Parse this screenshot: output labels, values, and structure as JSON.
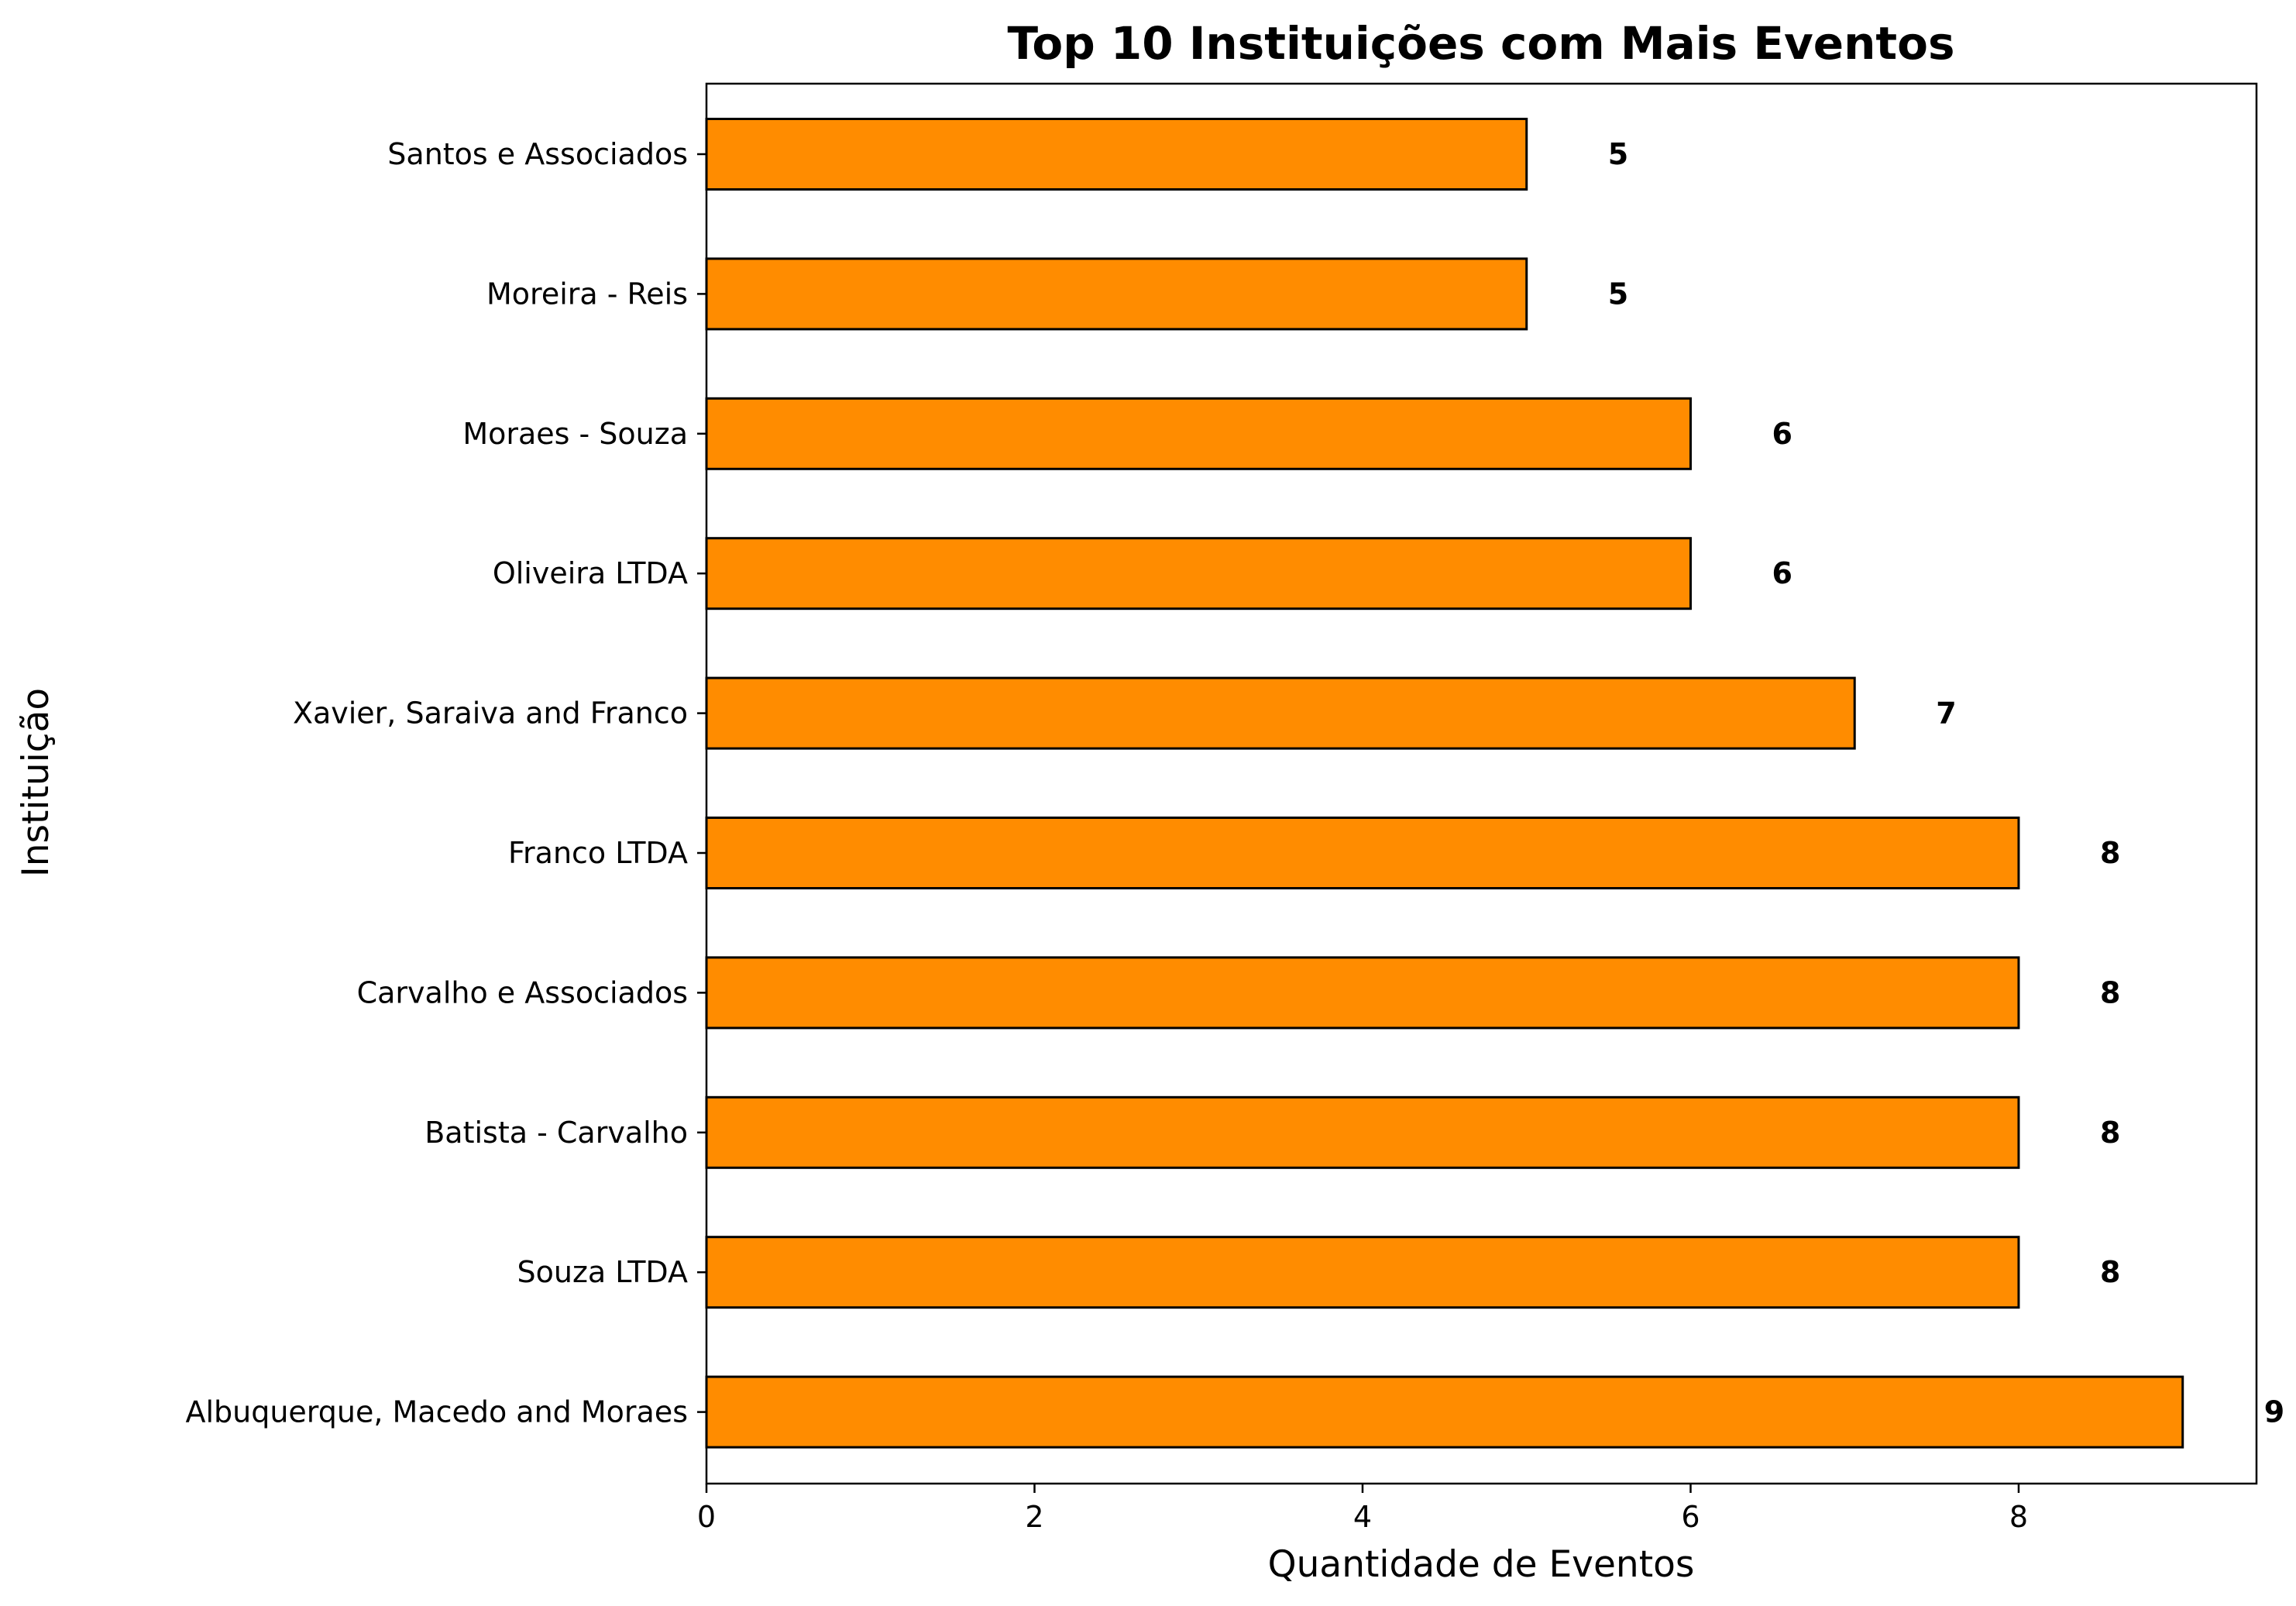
{
  "chart_data": {
    "type": "bar",
    "orientation": "horizontal",
    "title": "Top 10 Instituições com Mais Eventos",
    "xlabel": "Quantidade de Eventos",
    "ylabel": "Instituição",
    "categories": [
      "Santos e Associados",
      "Moreira - Reis",
      "Moraes - Souza",
      "Oliveira LTDA",
      "Xavier, Saraiva and Franco",
      "Franco LTDA",
      "Carvalho e Associados",
      "Batista - Carvalho",
      "Souza LTDA",
      "Albuquerque, Macedo and Moraes"
    ],
    "values": [
      5,
      5,
      6,
      6,
      7,
      8,
      8,
      8,
      8,
      9
    ],
    "data_labels": [
      "5",
      "5",
      "6",
      "6",
      "7",
      "8",
      "8",
      "8",
      "8",
      "9"
    ],
    "xlim": [
      0,
      9.45
    ],
    "xticks": [
      0,
      2,
      4,
      6,
      8
    ],
    "xtick_labels": [
      "0",
      "2",
      "4",
      "6",
      "8"
    ],
    "bar_color": "#ff8c00",
    "edge_color": "#000000",
    "grid": false,
    "legend": "none"
  }
}
